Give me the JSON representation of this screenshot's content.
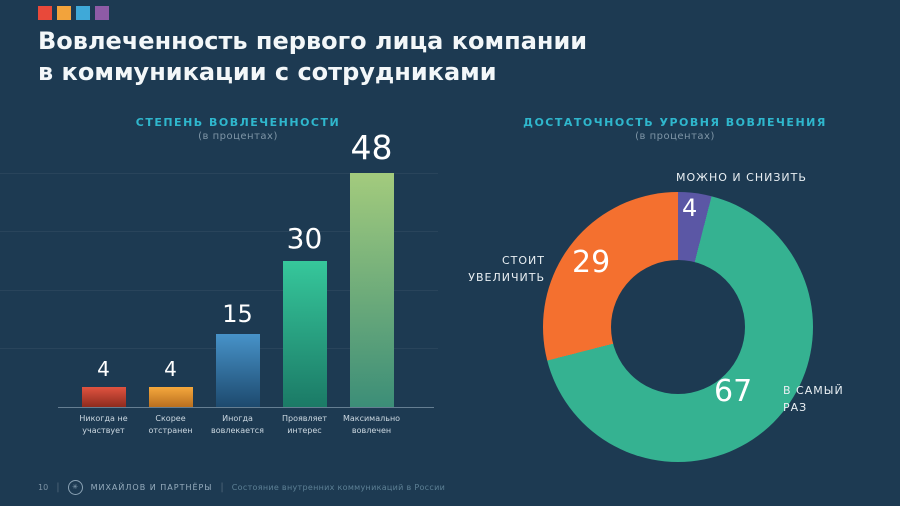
{
  "colors": {
    "background": "#1d3a52",
    "accent_cyan": "#2fb7cd",
    "logo_squares": [
      "#e8493a",
      "#f2a33c",
      "#3fa9d8",
      "#8e5ba6"
    ]
  },
  "title": {
    "line1": "Вовлеченность первого лица компании",
    "line2": "в коммуникации с сотрудниками"
  },
  "chart_data": [
    {
      "type": "bar",
      "title": "СТЕПЕНЬ ВОВЛЕЧЕННОСТИ",
      "subtitle": "(в процентах)",
      "categories": [
        "Никогда не участвует",
        "Скорее отстранен",
        "Иногда вовлекается",
        "Проявляет интерес",
        "Максимально вовлечен"
      ],
      "values": [
        4,
        4,
        15,
        30,
        48
      ],
      "ylim": [
        0,
        50
      ],
      "grid": true,
      "legend": "none",
      "bar_colors": [
        [
          "#e05340",
          "#8e2b1e"
        ],
        [
          "#f5a83d",
          "#b96f1f"
        ],
        [
          "#4793c9",
          "#1d4a6e"
        ],
        [
          "#36c79b",
          "#1b7a66"
        ],
        [
          "#a3cb7d",
          "#3c8e78"
        ]
      ]
    },
    {
      "type": "pie",
      "donut": true,
      "title": "ДОСТАТОЧНОСТЬ УРОВНЯ ВОВЛЕЧЕНИЯ",
      "subtitle": "(в процентах)",
      "slices": [
        {
          "label": "МОЖНО И СНИЗИТЬ",
          "value": 4,
          "color": "#5b57a5"
        },
        {
          "label": "В САМЫЙ РАЗ",
          "value": 67,
          "color": "#35b291"
        },
        {
          "label": "СТОИТ УВЕЛИЧИТЬ",
          "value": 29,
          "color": "#f4702f"
        }
      ]
    }
  ],
  "footer": {
    "page": "10",
    "brand": "МИХАЙЛОВ И ПАРТНЁРЫ",
    "report": "Состояние внутренних коммуникаций в России",
    "logo_glyph": "✳"
  }
}
